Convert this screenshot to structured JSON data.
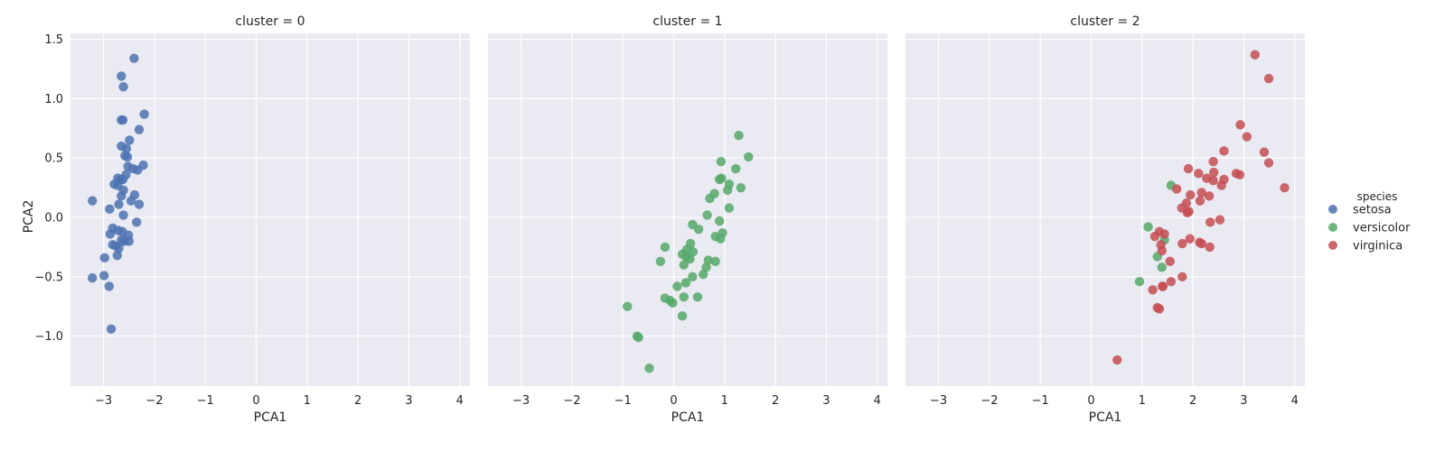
{
  "chart_data": {
    "type": "scatter",
    "facet_by": "cluster",
    "xlabel": "PCA1",
    "ylabel": "PCA2",
    "xlim": [
      -3.65,
      4.2
    ],
    "ylim": [
      -1.42,
      1.55
    ],
    "x_ticks": [
      -3,
      -2,
      -1,
      0,
      1,
      2,
      3,
      4
    ],
    "x_tick_labels": [
      "−3",
      "−2",
      "−1",
      "0",
      "1",
      "2",
      "3",
      "4"
    ],
    "y_ticks": [
      -1.0,
      -0.5,
      0.0,
      0.5,
      1.0,
      1.5
    ],
    "y_tick_labels": [
      "−1.0",
      "−0.5",
      "0.0",
      "0.5",
      "1.0",
      "1.5"
    ],
    "grid": true,
    "background": "#eaeaf2",
    "legend": {
      "title": "species",
      "position": "right",
      "entries": [
        {
          "label": "setosa",
          "color": "#4c72b0"
        },
        {
          "label": "versicolor",
          "color": "#55a868"
        },
        {
          "label": "virginica",
          "color": "#c44e52"
        }
      ]
    },
    "panels": [
      {
        "title": "cluster = 0",
        "series": [
          {
            "name": "setosa",
            "color": "#4c72b0",
            "points": [
              [
                -2.4,
                1.34
              ],
              [
                -2.65,
                1.19
              ],
              [
                -2.61,
                1.1
              ],
              [
                -2.65,
                0.82
              ],
              [
                -2.62,
                0.82
              ],
              [
                -2.2,
                0.87
              ],
              [
                -2.3,
                0.74
              ],
              [
                -2.49,
                0.65
              ],
              [
                -2.65,
                0.6
              ],
              [
                -2.55,
                0.58
              ],
              [
                -2.58,
                0.52
              ],
              [
                -2.53,
                0.51
              ],
              [
                -2.22,
                0.44
              ],
              [
                -2.52,
                0.43
              ],
              [
                -2.42,
                0.41
              ],
              [
                -2.33,
                0.4
              ],
              [
                -2.56,
                0.36
              ],
              [
                -2.72,
                0.33
              ],
              [
                -2.66,
                0.32
              ],
              [
                -2.62,
                0.32
              ],
              [
                -2.79,
                0.28
              ],
              [
                -2.72,
                0.27
              ],
              [
                -2.61,
                0.23
              ],
              [
                -2.39,
                0.19
              ],
              [
                -2.46,
                0.14
              ],
              [
                -3.22,
                0.14
              ],
              [
                -2.65,
                0.18
              ],
              [
                -2.7,
                0.11
              ],
              [
                -2.3,
                0.11
              ],
              [
                -2.88,
                0.07
              ],
              [
                -2.61,
                0.02
              ],
              [
                -2.35,
                -0.04
              ],
              [
                -2.82,
                -0.09
              ],
              [
                -2.71,
                -0.11
              ],
              [
                -2.63,
                -0.12
              ],
              [
                -2.87,
                -0.14
              ],
              [
                -2.51,
                -0.15
              ],
              [
                -2.65,
                -0.19
              ],
              [
                -2.6,
                -0.2
              ],
              [
                -2.5,
                -0.2
              ],
              [
                -2.82,
                -0.23
              ],
              [
                -2.76,
                -0.24
              ],
              [
                -2.7,
                -0.26
              ],
              [
                -2.73,
                -0.32
              ],
              [
                -2.98,
                -0.34
              ],
              [
                -2.99,
                -0.49
              ],
              [
                -3.22,
                -0.51
              ],
              [
                -2.89,
                -0.58
              ],
              [
                -2.85,
                -0.94
              ]
            ]
          }
        ]
      },
      {
        "title": "cluster = 1",
        "series": [
          {
            "name": "versicolor",
            "color": "#55a868",
            "points": [
              [
                1.28,
                0.69
              ],
              [
                1.47,
                0.51
              ],
              [
                0.93,
                0.47
              ],
              [
                1.22,
                0.41
              ],
              [
                0.94,
                0.33
              ],
              [
                0.9,
                0.32
              ],
              [
                1.09,
                0.28
              ],
              [
                1.06,
                0.23
              ],
              [
                1.32,
                0.25
              ],
              [
                0.8,
                0.2
              ],
              [
                0.71,
                0.16
              ],
              [
                1.09,
                0.08
              ],
              [
                0.66,
                0.02
              ],
              [
                0.9,
                -0.03
              ],
              [
                0.37,
                -0.06
              ],
              [
                0.49,
                -0.1
              ],
              [
                0.96,
                -0.13
              ],
              [
                0.82,
                -0.16
              ],
              [
                0.92,
                -0.18
              ],
              [
                0.33,
                -0.22
              ],
              [
                -0.17,
                -0.25
              ],
              [
                0.26,
                -0.27
              ],
              [
                0.38,
                -0.29
              ],
              [
                0.17,
                -0.31
              ],
              [
                0.24,
                -0.33
              ],
              [
                0.32,
                -0.35
              ],
              [
                0.68,
                -0.36
              ],
              [
                0.82,
                -0.37
              ],
              [
                -0.26,
                -0.37
              ],
              [
                0.2,
                -0.4
              ],
              [
                0.64,
                -0.42
              ],
              [
                0.58,
                -0.48
              ],
              [
                0.37,
                -0.5
              ],
              [
                0.24,
                -0.55
              ],
              [
                0.07,
                -0.58
              ],
              [
                0.2,
                -0.67
              ],
              [
                0.47,
                -0.67
              ],
              [
                -0.17,
                -0.68
              ],
              [
                -0.07,
                -0.7
              ],
              [
                -0.02,
                -0.72
              ],
              [
                -0.91,
                -0.75
              ],
              [
                0.17,
                -0.83
              ],
              [
                -0.72,
                -1.0
              ],
              [
                -0.69,
                -1.01
              ],
              [
                -0.48,
                -1.27
              ]
            ]
          }
        ]
      },
      {
        "title": "cluster = 2",
        "series": [
          {
            "name": "versicolor",
            "color": "#55a868",
            "points": [
              [
                1.57,
                0.27
              ],
              [
                1.12,
                -0.08
              ],
              [
                1.44,
                -0.19
              ],
              [
                1.3,
                -0.33
              ],
              [
                1.39,
                -0.42
              ],
              [
                0.95,
                -0.54
              ]
            ]
          },
          {
            "name": "virginica",
            "color": "#c44e52",
            "points": [
              [
                3.22,
                1.37
              ],
              [
                3.49,
                1.17
              ],
              [
                2.93,
                0.78
              ],
              [
                3.06,
                0.68
              ],
              [
                2.61,
                0.56
              ],
              [
                3.4,
                0.55
              ],
              [
                2.4,
                0.47
              ],
              [
                3.49,
                0.46
              ],
              [
                1.91,
                0.41
              ],
              [
                2.11,
                0.37
              ],
              [
                2.41,
                0.38
              ],
              [
                2.85,
                0.37
              ],
              [
                2.92,
                0.36
              ],
              [
                2.27,
                0.33
              ],
              [
                2.4,
                0.31
              ],
              [
                2.61,
                0.32
              ],
              [
                2.56,
                0.27
              ],
              [
                3.8,
                0.25
              ],
              [
                1.68,
                0.24
              ],
              [
                2.17,
                0.21
              ],
              [
                2.32,
                0.18
              ],
              [
                1.95,
                0.19
              ],
              [
                2.14,
                0.14
              ],
              [
                1.87,
                0.12
              ],
              [
                1.78,
                0.08
              ],
              [
                1.92,
                0.05
              ],
              [
                1.89,
                0.04
              ],
              [
                2.53,
                -0.02
              ],
              [
                2.34,
                -0.04
              ],
              [
                1.34,
                -0.12
              ],
              [
                1.44,
                -0.14
              ],
              [
                1.25,
                -0.16
              ],
              [
                1.94,
                -0.18
              ],
              [
                2.13,
                -0.21
              ],
              [
                1.79,
                -0.22
              ],
              [
                2.17,
                -0.22
              ],
              [
                1.37,
                -0.23
              ],
              [
                2.33,
                -0.25
              ],
              [
                1.39,
                -0.28
              ],
              [
                1.55,
                -0.37
              ],
              [
                1.79,
                -0.5
              ],
              [
                1.57,
                -0.54
              ],
              [
                1.4,
                -0.58
              ],
              [
                1.41,
                -0.58
              ],
              [
                1.21,
                -0.61
              ],
              [
                1.3,
                -0.76
              ],
              [
                1.34,
                -0.77
              ],
              [
                0.51,
                -1.2
              ]
            ]
          }
        ]
      }
    ]
  }
}
